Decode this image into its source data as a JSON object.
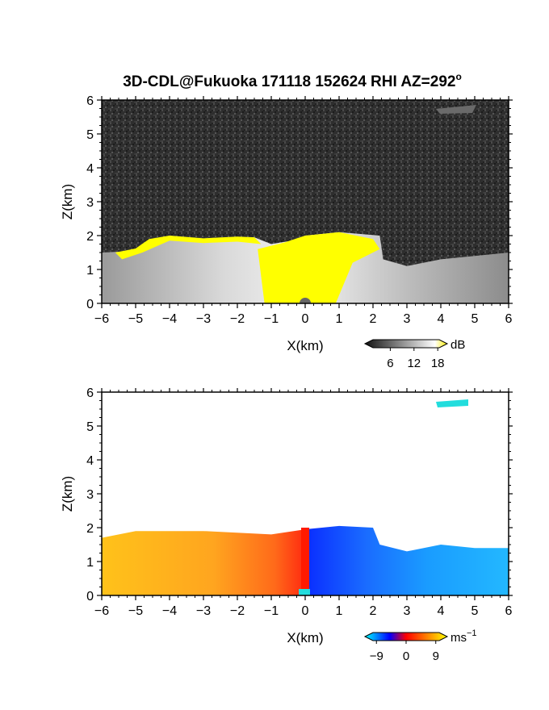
{
  "chart_data": [
    {
      "type": "heatmap",
      "title": "3D-CDL@Fukuoka 171118 152624 RHI AZ=292",
      "title_superscript": "o",
      "xlabel": "X(km)",
      "ylabel": "Z(km)",
      "xlim": [
        -6,
        6
      ],
      "ylim": [
        0,
        6
      ],
      "xticks": [
        "-6",
        "-5",
        "-4",
        "-3",
        "-2",
        "-1",
        "0",
        "1",
        "2",
        "3",
        "4",
        "5",
        "6"
      ],
      "yticks": [
        "0",
        "1",
        "2",
        "3",
        "4",
        "5",
        "6"
      ],
      "colorbar": {
        "ticks": [
          "6",
          "12",
          "18"
        ],
        "tick_values": [
          6,
          12,
          18
        ],
        "range": [
          0,
          20
        ],
        "unit": "dB",
        "colors": [
          "#111111",
          "#ffffff",
          "#ffee00"
        ]
      },
      "signal_top_km": [
        {
          "x": -6.0,
          "z": 1.5
        },
        {
          "x": -5.0,
          "z": 1.55
        },
        {
          "x": -4.5,
          "z": 1.85
        },
        {
          "x": -4.0,
          "z": 2.0
        },
        {
          "x": -3.0,
          "z": 1.9
        },
        {
          "x": -2.0,
          "z": 1.95
        },
        {
          "x": -1.5,
          "z": 1.95
        },
        {
          "x": -1.0,
          "z": 1.75
        },
        {
          "x": -0.1,
          "z": 1.9
        },
        {
          "x": 0.0,
          "z": 2.0
        },
        {
          "x": 1.0,
          "z": 2.1
        },
        {
          "x": 2.2,
          "z": 2.0
        },
        {
          "x": 2.3,
          "z": 1.3
        },
        {
          "x": 3.0,
          "z": 1.1
        },
        {
          "x": 4.0,
          "z": 1.3
        },
        {
          "x": 5.0,
          "z": 1.4
        },
        {
          "x": 6.0,
          "z": 1.5
        }
      ]
    },
    {
      "type": "heatmap",
      "xlabel": "X(km)",
      "ylabel": "Z(km)",
      "xlim": [
        -6,
        6
      ],
      "ylim": [
        0,
        6
      ],
      "xticks": [
        "-6",
        "-5",
        "-4",
        "-3",
        "-2",
        "-1",
        "0",
        "1",
        "2",
        "3",
        "4",
        "5",
        "6"
      ],
      "yticks": [
        "0",
        "1",
        "2",
        "3",
        "4",
        "5",
        "6"
      ],
      "colorbar": {
        "ticks": [
          "−9",
          "0",
          "9"
        ],
        "tick_values": [
          -9,
          0,
          9
        ],
        "range": [
          -12,
          12
        ],
        "unit": "ms",
        "unit_superscript": "−1",
        "colors": [
          "#00ffff",
          "#0000ff",
          "#ff0000",
          "#ffff00"
        ]
      },
      "velocity_field": {
        "negative_x_ms": 8,
        "near_zero_x_ms": 2,
        "positive_x_ms": -9,
        "far_positive_x_ms": -6
      },
      "signal_top_km": [
        {
          "x": -6.0,
          "z": 1.7
        },
        {
          "x": -5.0,
          "z": 1.9
        },
        {
          "x": -3.0,
          "z": 1.9
        },
        {
          "x": -1.0,
          "z": 1.8
        },
        {
          "x": 0.0,
          "z": 1.95
        },
        {
          "x": 1.0,
          "z": 2.05
        },
        {
          "x": 2.0,
          "z": 2.0
        },
        {
          "x": 2.2,
          "z": 1.5
        },
        {
          "x": 3.0,
          "z": 1.3
        },
        {
          "x": 4.0,
          "z": 1.5
        },
        {
          "x": 5.0,
          "z": 1.4
        },
        {
          "x": 6.0,
          "z": 1.4
        }
      ]
    }
  ]
}
